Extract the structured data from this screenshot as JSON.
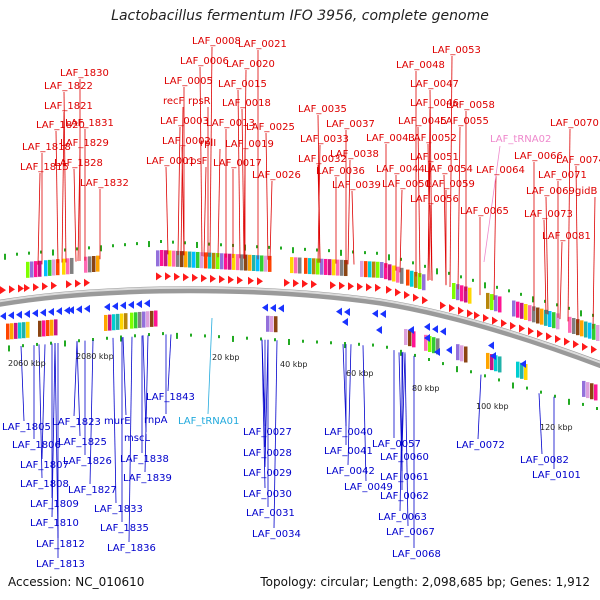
{
  "title": "Lactobacillus fermentum IFO 3956, complete genome",
  "footer": {
    "accession": "Accession: NC_010610",
    "summary": "Topology: circular; Length: 2,098,685 bp; Genes: 1,912"
  },
  "colors": {
    "forward_label": "#dd0000",
    "reverse_label": "#0000cc",
    "trna_forward": "#ee88cc",
    "trna_reverse": "#22aadd",
    "forward_arrow": "#ff1a1a",
    "reverse_arrow": "#1a33ff",
    "backbone": "#999999",
    "gc_tick": "#22aa22"
  },
  "ticks": [
    "2060 kbp",
    "2080 kbp",
    "20 kbp",
    "40 kbp",
    "60 kbp",
    "80 kbp",
    "100 kbp",
    "120 kbp"
  ],
  "forward_labels": [
    "LAF_0008",
    "LAF_0021",
    "LAF_0006",
    "LAF_0020",
    "LAF_0005",
    "LAF_0015",
    "recF",
    "rpsR",
    "LAF_0018",
    "LAF_0003",
    "LAF_0013",
    "LAF_0002",
    "rplI",
    "LAF_0019",
    "LAF_0001",
    "rpsF",
    "LAF_0017",
    "LAF_0025",
    "LAF_0026",
    "LAF_1830",
    "LAF_1822",
    "LAF_1821",
    "LAF_1831",
    "LAF_1820",
    "LAF_1829",
    "LAF_1818",
    "LAF_1828",
    "LAF_1815",
    "LAF_1832",
    "LAF_0035",
    "LAF_0033",
    "LAF_0037",
    "LAF_0032",
    "LAF_0038",
    "LAF_0036",
    "LAF_0039",
    "LAF_0053",
    "LAF_0048",
    "LAF_0047",
    "LAF_0046",
    "LAF_0058",
    "LAF_0045",
    "LAF_0055",
    "LAF_0043",
    "LAF_0052",
    "LAF_0051",
    "LAF_0044",
    "LAF_0054",
    "LAF_0050",
    "LAF_0059",
    "LAF_0056",
    "LAF_0070",
    "LAF_0066",
    "LAF_0074",
    "LAF_0064",
    "LAF_0071",
    "LAF_0069",
    "gidB",
    "LAF_0065",
    "LAF_0073",
    "LAF_0081"
  ],
  "trna_forward": "LAF_tRNA02",
  "reverse_labels": [
    "LAF_1805",
    "LAF_1806",
    "LAF_1807",
    "LAF_1808",
    "LAF_1809",
    "LAF_1810",
    "LAF_1812",
    "LAF_1813",
    "LAF_1823",
    "LAF_1825",
    "LAF_1826",
    "LAF_1827",
    "murE",
    "rnpA",
    "LAF_1843",
    "mscL",
    "LAF_1838",
    "LAF_1839",
    "LAF_1833",
    "LAF_1835",
    "LAF_1836",
    "LAF_0027",
    "LAF_0028",
    "LAF_0029",
    "LAF_0030",
    "LAF_0031",
    "LAF_0034",
    "LAF_0040",
    "LAF_0041",
    "LAF_0042",
    "LAF_0049",
    "LAF_0057",
    "LAF_0060",
    "LAF_0061",
    "LAF_0062",
    "LAF_0063",
    "LAF_0067",
    "LAF_0068",
    "LAF_0072",
    "LAF_0082",
    "LAF_0101"
  ],
  "trna_reverse": "LAF_tRNA01"
}
